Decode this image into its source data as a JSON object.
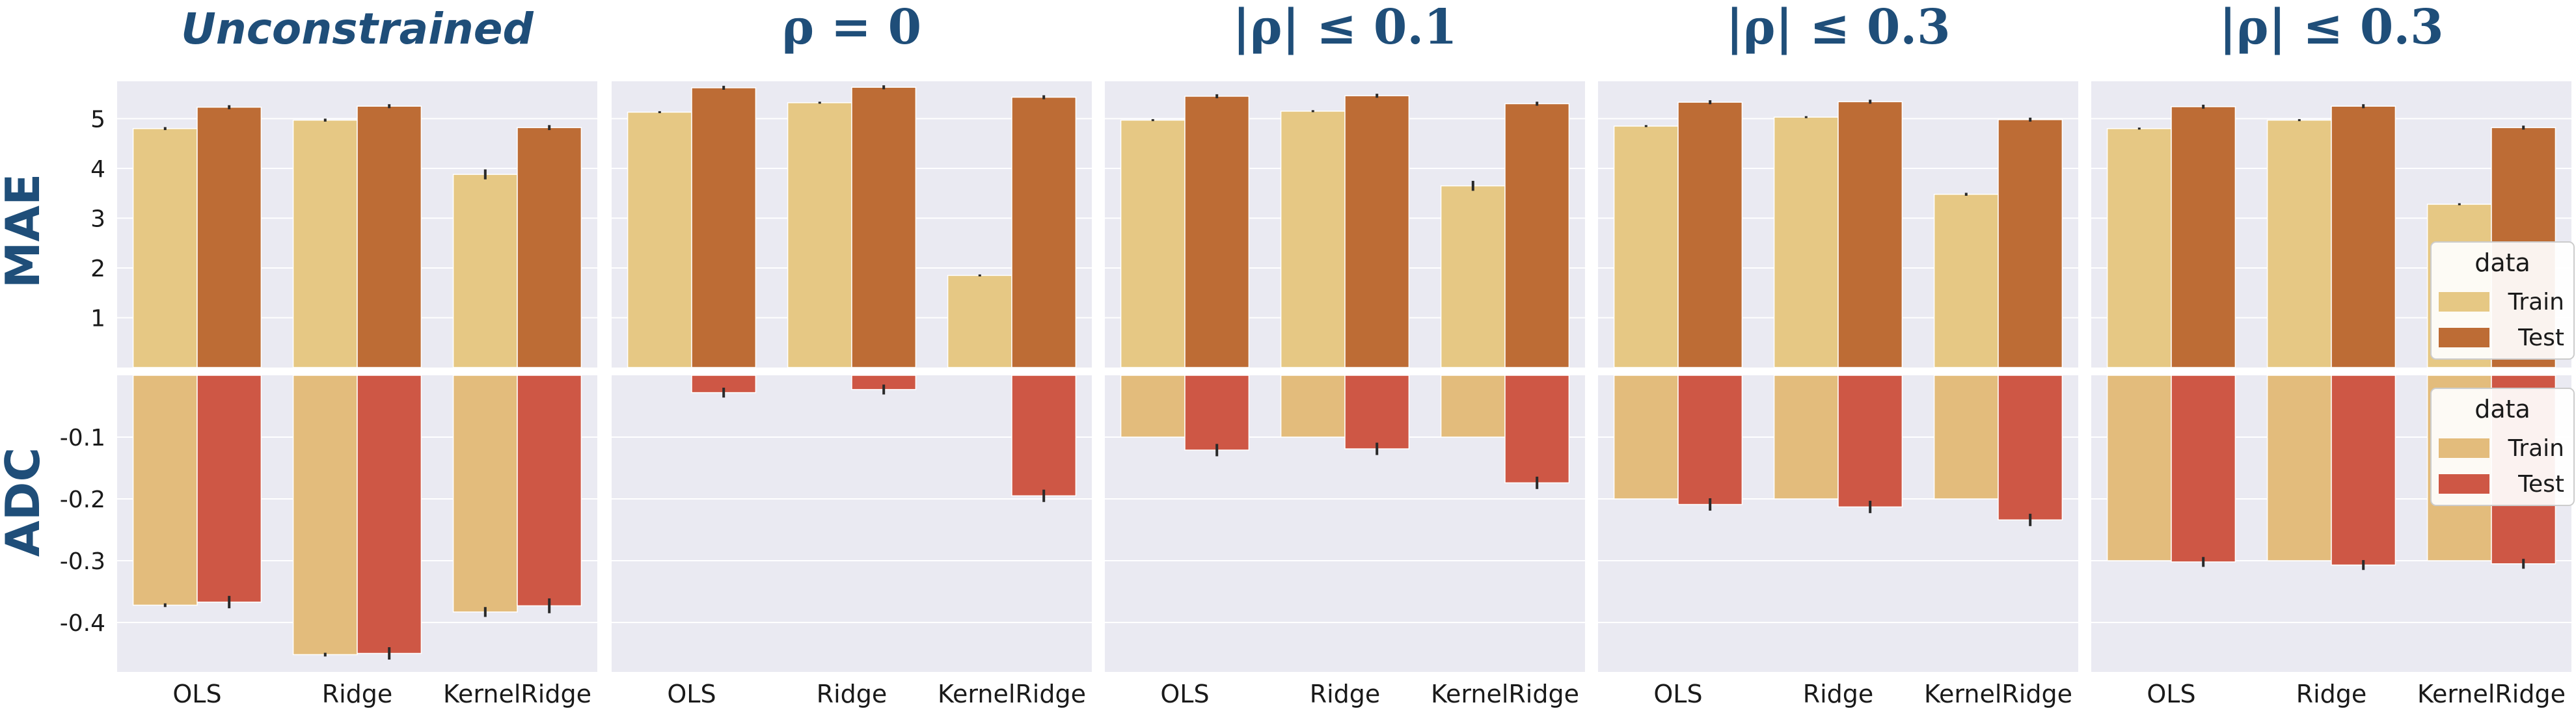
{
  "layout_note": "",
  "colors": {
    "panel_bg": "#eaeaf2",
    "grid": "#ffffff",
    "mae_train": "#e6c884",
    "mae_test": "#bd6c35",
    "adc_train": "#e3bc7c",
    "adc_test": "#ce5745",
    "error_bar": "#2a2a2a",
    "title": "#1f4e79"
  },
  "row_labels": {
    "mae": "MAE",
    "adc": "ADC"
  },
  "legend": {
    "title": "data",
    "entries": [
      "Train",
      "Test"
    ]
  },
  "chart_data": {
    "type": "bar",
    "categories": [
      "OLS",
      "Ridge",
      "KernelRidge"
    ],
    "series_names": [
      "Train",
      "Test"
    ],
    "mae_axis": {
      "ylabel": "MAE",
      "ylim": [
        0,
        5.75
      ],
      "ticks": [
        1,
        2,
        3,
        4,
        5
      ],
      "tick_labels": [
        "1",
        "2",
        "3",
        "4",
        "5"
      ]
    },
    "adc_axis": {
      "ylabel": "ADC",
      "ylim": [
        -0.48,
        0
      ],
      "ticks": [
        -0.1,
        -0.2,
        -0.3,
        -0.4
      ],
      "tick_labels": [
        "-0.1",
        "-0.2",
        "-0.3",
        "-0.4"
      ]
    },
    "panels": [
      {
        "title": "Unconstrained",
        "mae": {
          "train": [
            4.8,
            4.97,
            3.88
          ],
          "test": [
            5.23,
            5.25,
            4.82
          ],
          "train_err": [
            0.03,
            0.03,
            0.1
          ],
          "test_err": [
            0.04,
            0.04,
            0.05
          ]
        },
        "adc": {
          "train": [
            -0.372,
            -0.452,
            -0.383
          ],
          "test": [
            -0.367,
            -0.45,
            -0.373
          ],
          "train_err": [
            0.003,
            0.003,
            0.008
          ],
          "test_err": [
            0.01,
            0.01,
            0.012
          ]
        }
      },
      {
        "title": "ρ = 0",
        "mae": {
          "train": [
            5.13,
            5.32,
            1.85
          ],
          "test": [
            5.62,
            5.63,
            5.43
          ],
          "train_err": [
            0.02,
            0.02,
            0.02
          ],
          "test_err": [
            0.04,
            0.04,
            0.04
          ]
        },
        "adc": {
          "train": [
            0.0,
            0.0,
            0.0
          ],
          "test": [
            -0.028,
            -0.023,
            -0.195
          ],
          "train_err": [
            0.0,
            0.0,
            0.0
          ],
          "test_err": [
            0.008,
            0.008,
            0.01
          ]
        }
      },
      {
        "title": "|ρ| ≤ 0.1",
        "mae": {
          "train": [
            4.97,
            5.15,
            3.65
          ],
          "test": [
            5.45,
            5.46,
            5.3
          ],
          "train_err": [
            0.02,
            0.02,
            0.1
          ],
          "test_err": [
            0.04,
            0.04,
            0.04
          ]
        },
        "adc": {
          "train": [
            -0.1,
            -0.1,
            -0.1
          ],
          "test": [
            -0.121,
            -0.119,
            -0.174
          ],
          "train_err": [
            0.0,
            0.0,
            0.0
          ],
          "test_err": [
            0.01,
            0.01,
            0.01
          ]
        }
      },
      {
        "title": "|ρ| ≤ 0.3",
        "mae": {
          "train": [
            4.85,
            5.03,
            3.48
          ],
          "test": [
            5.33,
            5.34,
            4.98
          ],
          "train_err": [
            0.02,
            0.02,
            0.03
          ],
          "test_err": [
            0.04,
            0.04,
            0.04
          ]
        },
        "adc": {
          "train": [
            -0.2,
            -0.2,
            -0.2
          ],
          "test": [
            -0.209,
            -0.213,
            -0.234
          ],
          "train_err": [
            0.0,
            0.0,
            0.0
          ],
          "test_err": [
            0.01,
            0.01,
            0.01
          ]
        }
      },
      {
        "title": "|ρ| ≤ 0.3",
        "mae": {
          "train": [
            4.8,
            4.97,
            3.28
          ],
          "test": [
            5.24,
            5.25,
            4.82
          ],
          "train_err": [
            0.02,
            0.02,
            0.02
          ],
          "test_err": [
            0.04,
            0.04,
            0.04
          ]
        },
        "adc": {
          "train": [
            -0.3,
            -0.3,
            -0.3
          ],
          "test": [
            -0.302,
            -0.307,
            -0.305
          ],
          "train_err": [
            0.0,
            0.0,
            0.0
          ],
          "test_err": [
            0.008,
            0.008,
            0.008
          ]
        }
      }
    ]
  }
}
